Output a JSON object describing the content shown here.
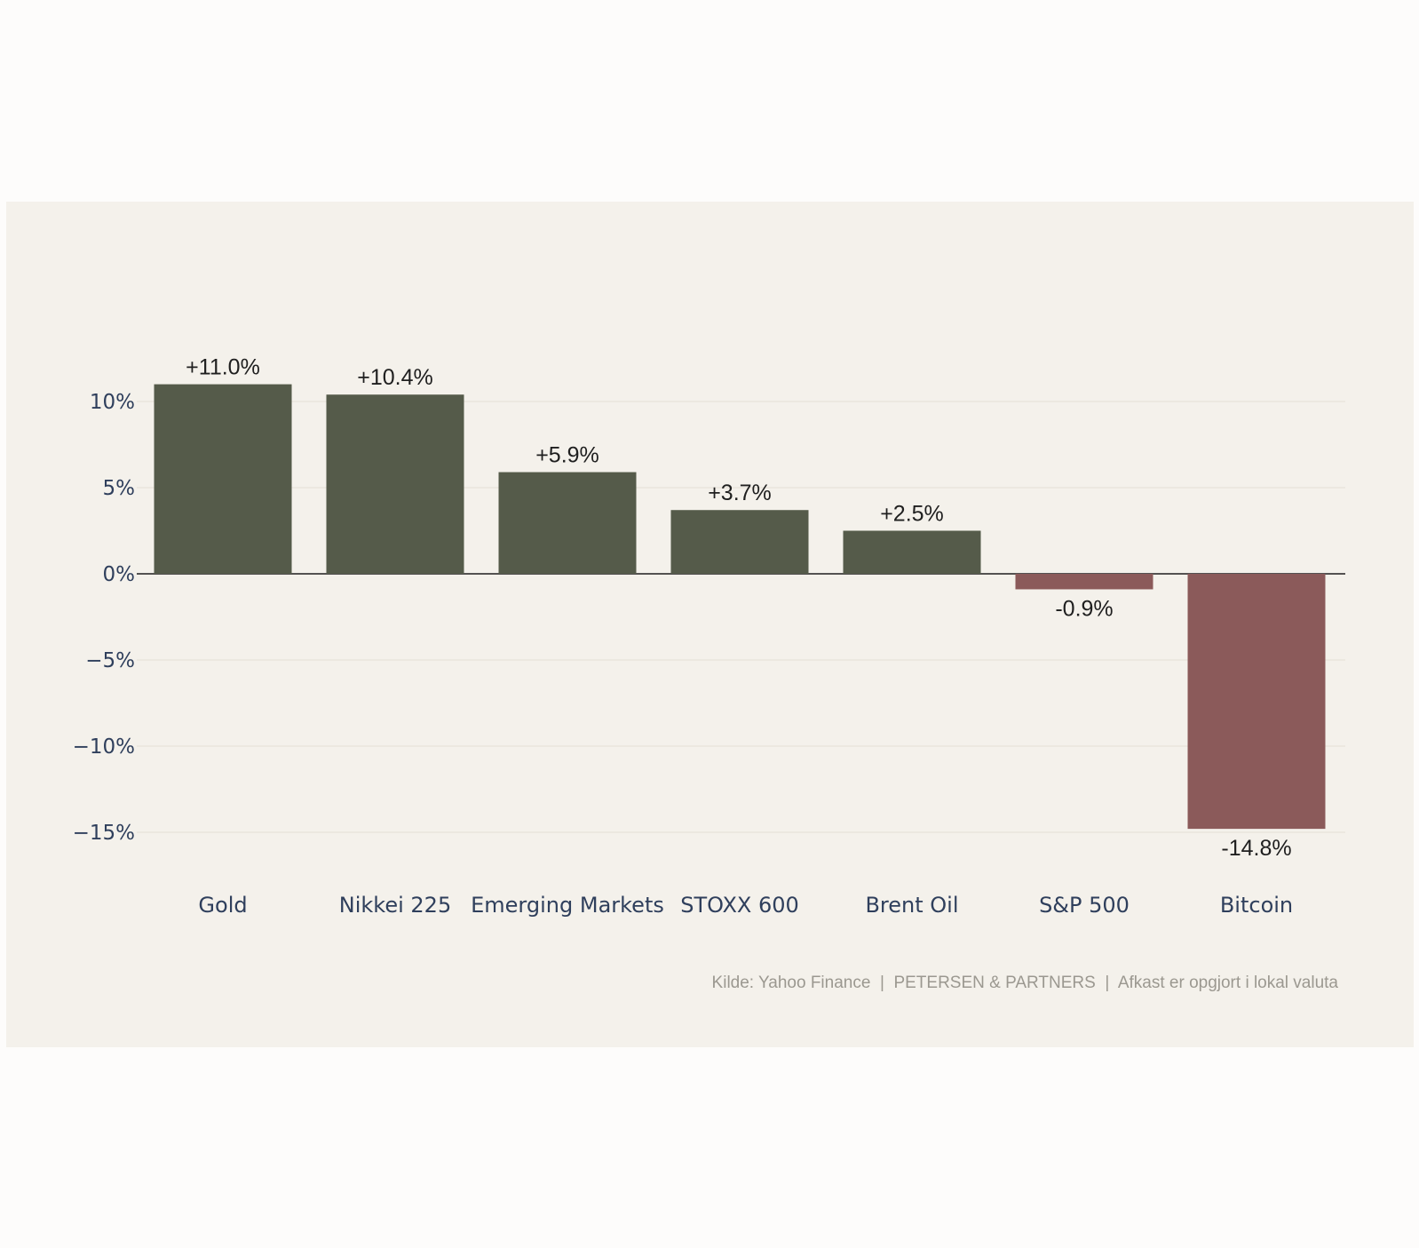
{
  "chart_data": {
    "type": "bar",
    "categories": [
      "Gold",
      "Nikkei 225",
      "Emerging Markets",
      "STOXX 600",
      "Brent Oil",
      "S&P 500",
      "Bitcoin"
    ],
    "values": [
      11.0,
      10.4,
      5.9,
      3.7,
      2.5,
      -0.9,
      -14.8
    ],
    "data_labels": [
      "+11.0%",
      "+10.4%",
      "+5.9%",
      "+3.7%",
      "+2.5%",
      "-0.9%",
      "-14.8%"
    ],
    "title": "",
    "xlabel": "",
    "ylabel": "",
    "ylim": [
      -17.2,
      12.0
    ],
    "yticks": [
      10,
      5,
      0,
      -5,
      -10,
      -15
    ],
    "ytick_labels": [
      "10%",
      "5%",
      "0%",
      "−5%",
      "−10%",
      "−15%"
    ],
    "grid": true,
    "legend": false,
    "colors": {
      "positive": "#555b4a",
      "negative": "#8b5a5a",
      "background": "#f4f1eb",
      "grid": "#e6e2da",
      "zero_line": "#1e1e1e"
    },
    "source_note": "Kilde: Yahoo Finance  |  PETERSEN & PARTNERS  |  Afkast er opgjort i lokal valuta"
  }
}
